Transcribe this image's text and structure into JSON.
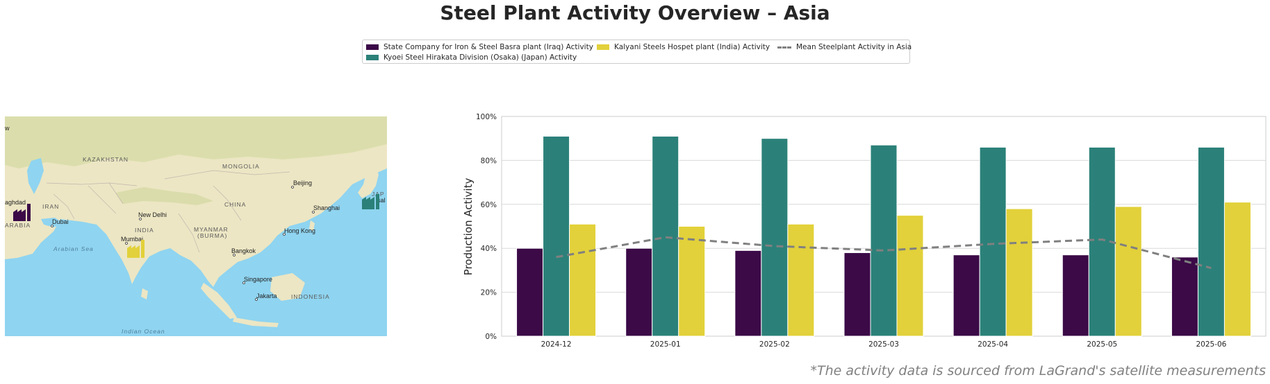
{
  "title": "Steel Plant Activity Overview – Asia",
  "footnote": "*The activity data is sourced from LaGrand's satellite measurements",
  "colors": {
    "basra": "#3b0a47",
    "kyoei": "#2b8179",
    "kalyani": "#e2d13a",
    "mean": "#808080"
  },
  "legend": {
    "basra": "State Company for Iron & Steel Basra plant (Iraq) Activity",
    "kyoei": "Kyoei Steel Hirakata Division (Osaka) (Japan) Activity",
    "kalyani": "Kalyani Steels Hospet plant (India) Activity",
    "mean": "Mean Steelplant Activity in Asia"
  },
  "map": {
    "labels": {
      "kazakhstan": "KAZAKHSTAN",
      "mongolia": "MONGOLIA",
      "beijing": "Beijing",
      "china": "CHINA",
      "shanghai": "Shanghai",
      "iran": "IRAN",
      "baghdad": "aghdad",
      "dubai": "Dubai",
      "arabia": "ARABIA",
      "new_delhi": "New Delhi",
      "india": "INDIA",
      "myanmar": "MYANMAR",
      "burma": "(BURMA)",
      "hong_kong": "Hong Kong",
      "mumbai": "Mumbai",
      "arabian_sea": "Arabian Sea",
      "bangkok": "Bangkok",
      "singapore": "Singapore",
      "jakarta": "Jakarta",
      "indonesia": "INDONESIA",
      "indian_ocean": "Indian Ocean",
      "edge_w": "w",
      "edge_jap": "JAP",
      "edge_osaka": "sal"
    }
  },
  "chart_data": {
    "type": "bar",
    "categories": [
      "2024-12",
      "2025-01",
      "2025-02",
      "2025-03",
      "2025-04",
      "2025-05",
      "2025-06"
    ],
    "series": [
      {
        "name": "State Company for Iron & Steel Basra plant (Iraq) Activity",
        "values": [
          40,
          40,
          39,
          38,
          37,
          37,
          36
        ]
      },
      {
        "name": "Kyoei Steel Hirakata Division (Osaka) (Japan) Activity",
        "values": [
          91,
          91,
          90,
          87,
          86,
          86,
          86
        ]
      },
      {
        "name": "Kalyani Steels Hospet plant (India) Activity",
        "values": [
          51,
          50,
          51,
          55,
          58,
          59,
          61
        ]
      },
      {
        "name": "Mean Steelplant Activity in Asia",
        "type": "line",
        "style": "dashed",
        "values": [
          36,
          45,
          41,
          39,
          42,
          44,
          31
        ]
      }
    ],
    "ylabel": "Production Activity",
    "ylim": [
      0,
      100
    ],
    "yticks": [
      "0%",
      "20%",
      "40%",
      "60%",
      "80%",
      "100%"
    ],
    "grid": true,
    "legend_position": "top-center"
  }
}
